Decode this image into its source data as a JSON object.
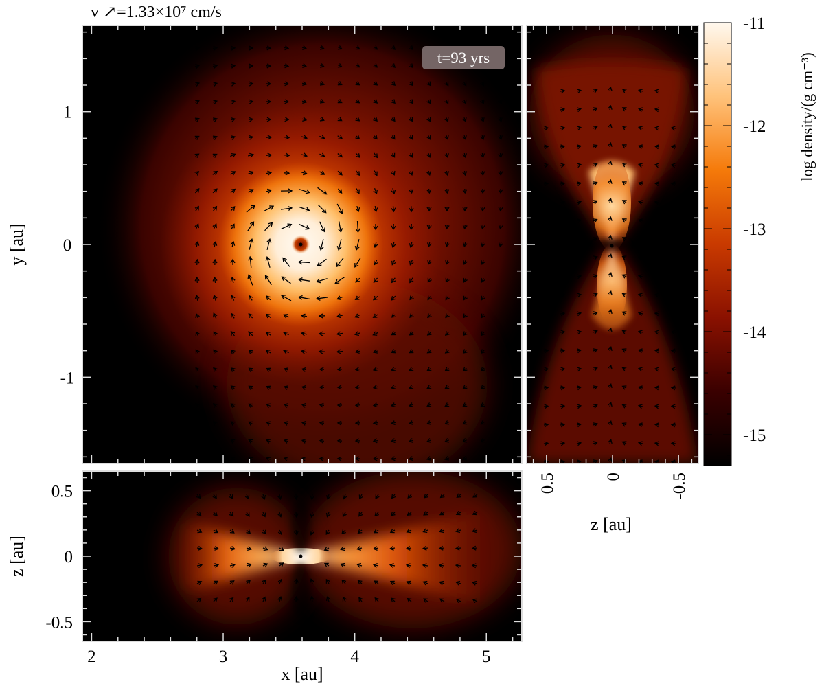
{
  "velocity_label": "v ↗=1.33×10⁷ cm/s",
  "time_label": "t=93 yrs",
  "colors": {
    "colormap": [
      "#000000",
      "#3a0000",
      "#8a1100",
      "#c93a00",
      "#f57a0a",
      "#ffc27a",
      "#fff8ee"
    ],
    "arrow": "#000000",
    "frame": "#dddddd",
    "time_box": "#7a6a6a"
  },
  "chart_data": [
    {
      "type": "heatmap",
      "panel": "x-y slice (top-left)",
      "title": "",
      "xlabel": "",
      "ylabel": "y [au]",
      "xlim": [
        1.93,
        5.27
      ],
      "ylim": [
        -1.65,
        1.65
      ],
      "xticks": [
        2,
        3,
        4,
        5
      ],
      "yticks": [
        {
          "value": 1,
          "label": "1"
        },
        {
          "value": 0,
          "label": "0"
        },
        {
          "value": -1,
          "label": "-1"
        }
      ],
      "center": [
        3.6,
        0.0
      ],
      "overlay": "velocity vectors (rotation around the central density peak)"
    },
    {
      "type": "heatmap",
      "panel": "z-y slice (top-right)",
      "title": "",
      "xlabel": "z [au]",
      "ylabel": "",
      "xlim": [
        0.65,
        -0.65
      ],
      "ylim": [
        -1.65,
        1.65
      ],
      "xticks": [
        {
          "value": 0.5,
          "label": "0.5"
        },
        {
          "value": 0,
          "label": "0"
        },
        {
          "value": -0.5,
          "label": "-0.5"
        }
      ],
      "overlay": "velocity vectors"
    },
    {
      "type": "heatmap",
      "panel": "x-z slice (bottom-left)",
      "title": "",
      "xlabel": "x [au]",
      "ylabel": "z [au]",
      "xlim": [
        1.93,
        5.27
      ],
      "ylim": [
        -0.65,
        0.65
      ],
      "xticks": [
        {
          "value": 2,
          "label": "2"
        },
        {
          "value": 3,
          "label": "3"
        },
        {
          "value": 4,
          "label": "4"
        },
        {
          "value": 5,
          "label": "5"
        }
      ],
      "yticks": [
        {
          "value": 0.5,
          "label": "0.5"
        },
        {
          "value": 0,
          "label": "0"
        },
        {
          "value": -0.5,
          "label": "-0.5"
        }
      ],
      "overlay": "velocity vectors"
    },
    {
      "type": "colorbar",
      "label": "log density/(g cm⁻³)",
      "range": [
        -15.3,
        -11.0
      ],
      "ticks": [
        {
          "value": -11,
          "label": "-11"
        },
        {
          "value": -12,
          "label": "-12"
        },
        {
          "value": -13,
          "label": "-13"
        },
        {
          "value": -14,
          "label": "-14"
        },
        {
          "value": -15,
          "label": "-15"
        }
      ]
    }
  ]
}
